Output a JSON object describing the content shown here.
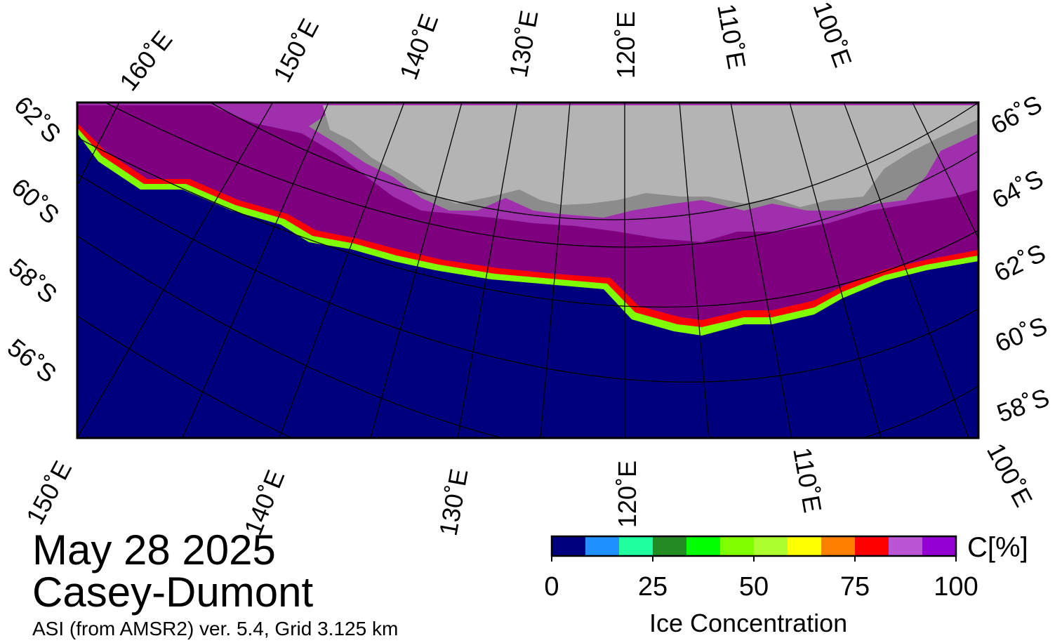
{
  "title": {
    "date": "May 28 2025",
    "region": "Casey-Dumont",
    "subtitle": "ASI (from AMSR2) ver. 5.4,  Grid 3.125 km"
  },
  "map": {
    "ocean_color": "#00007f",
    "land_color": "#b4b4b4",
    "ice_shelf_color": "#8c8c8c",
    "top_longitude_labels": [
      "160˚E",
      "150˚E",
      "140˚E",
      "130˚E",
      "120˚E",
      "110˚E",
      "100˚E"
    ],
    "bottom_longitude_labels": [
      "150˚E",
      "140˚E",
      "130˚E",
      "120˚E",
      "110˚E",
      "100˚E"
    ],
    "left_latitude_labels": [
      "62˚S",
      "60˚S",
      "58˚S",
      "56˚S"
    ],
    "right_latitude_labels": [
      "66˚S",
      "64˚S",
      "62˚S",
      "60˚S",
      "58˚S"
    ]
  },
  "colorbar": {
    "title": "Ice Concentration",
    "unit": "C[%]",
    "ticks": [
      "0",
      "25",
      "50",
      "75",
      "100"
    ],
    "range": [
      0,
      100
    ],
    "colors": [
      "#00007f",
      "#1e90ff",
      "#1effa0",
      "#228b22",
      "#00ff00",
      "#7fff00",
      "#adff2f",
      "#ffff00",
      "#ff7f00",
      "#ff0000",
      "#ba55d3",
      "#9400d3"
    ]
  }
}
